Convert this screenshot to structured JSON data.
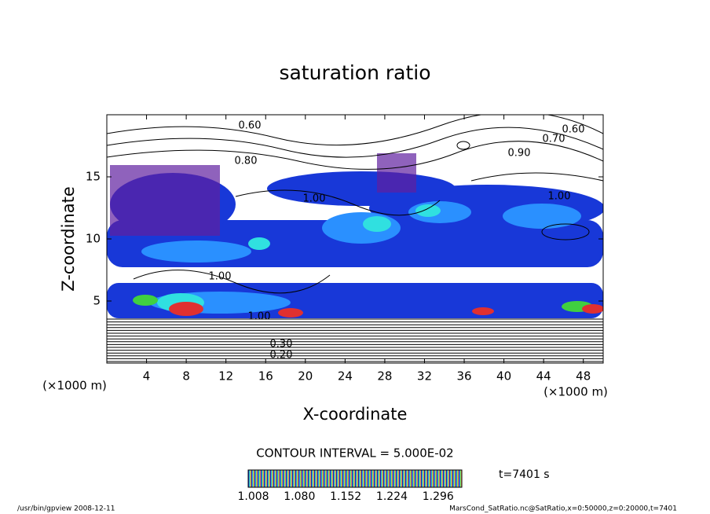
{
  "chart_data": {
    "type": "contour",
    "title": "saturation ratio",
    "x_label": "X-coordinate",
    "y_label": "Z-coordinate",
    "x_unit": "(×1000 m)",
    "y_unit": "(×1000 m)",
    "xlim": [
      0,
      50
    ],
    "xticks": [
      4,
      8,
      12,
      16,
      20,
      24,
      28,
      32,
      36,
      40,
      44,
      48
    ],
    "ylim": [
      0,
      20
    ],
    "yticks": [
      5,
      10,
      15
    ],
    "contour_labels": [
      "0.60",
      "0.60",
      "0.70",
      "0.80",
      "0.90",
      "1.00",
      "1.00",
      "1.00",
      "1.00",
      "0.30",
      "0.20"
    ],
    "contour_interval": "CONTOUR INTERVAL = 5.000E-02",
    "colorbar": {
      "lim": [
        1.0,
        1.333
      ],
      "ticks": [
        1.008,
        {
          "value": 1.08,
          "label": "1.080"
        },
        1.152,
        1.224,
        1.296
      ]
    },
    "time_label": "t=7401 s",
    "footer_left": "/usr/bin/gpview   2008-12-11",
    "footer_right": "MarsCond_SatRatio.nc@SatRatio,x=0:50000,z=0:20000,t=7401"
  }
}
